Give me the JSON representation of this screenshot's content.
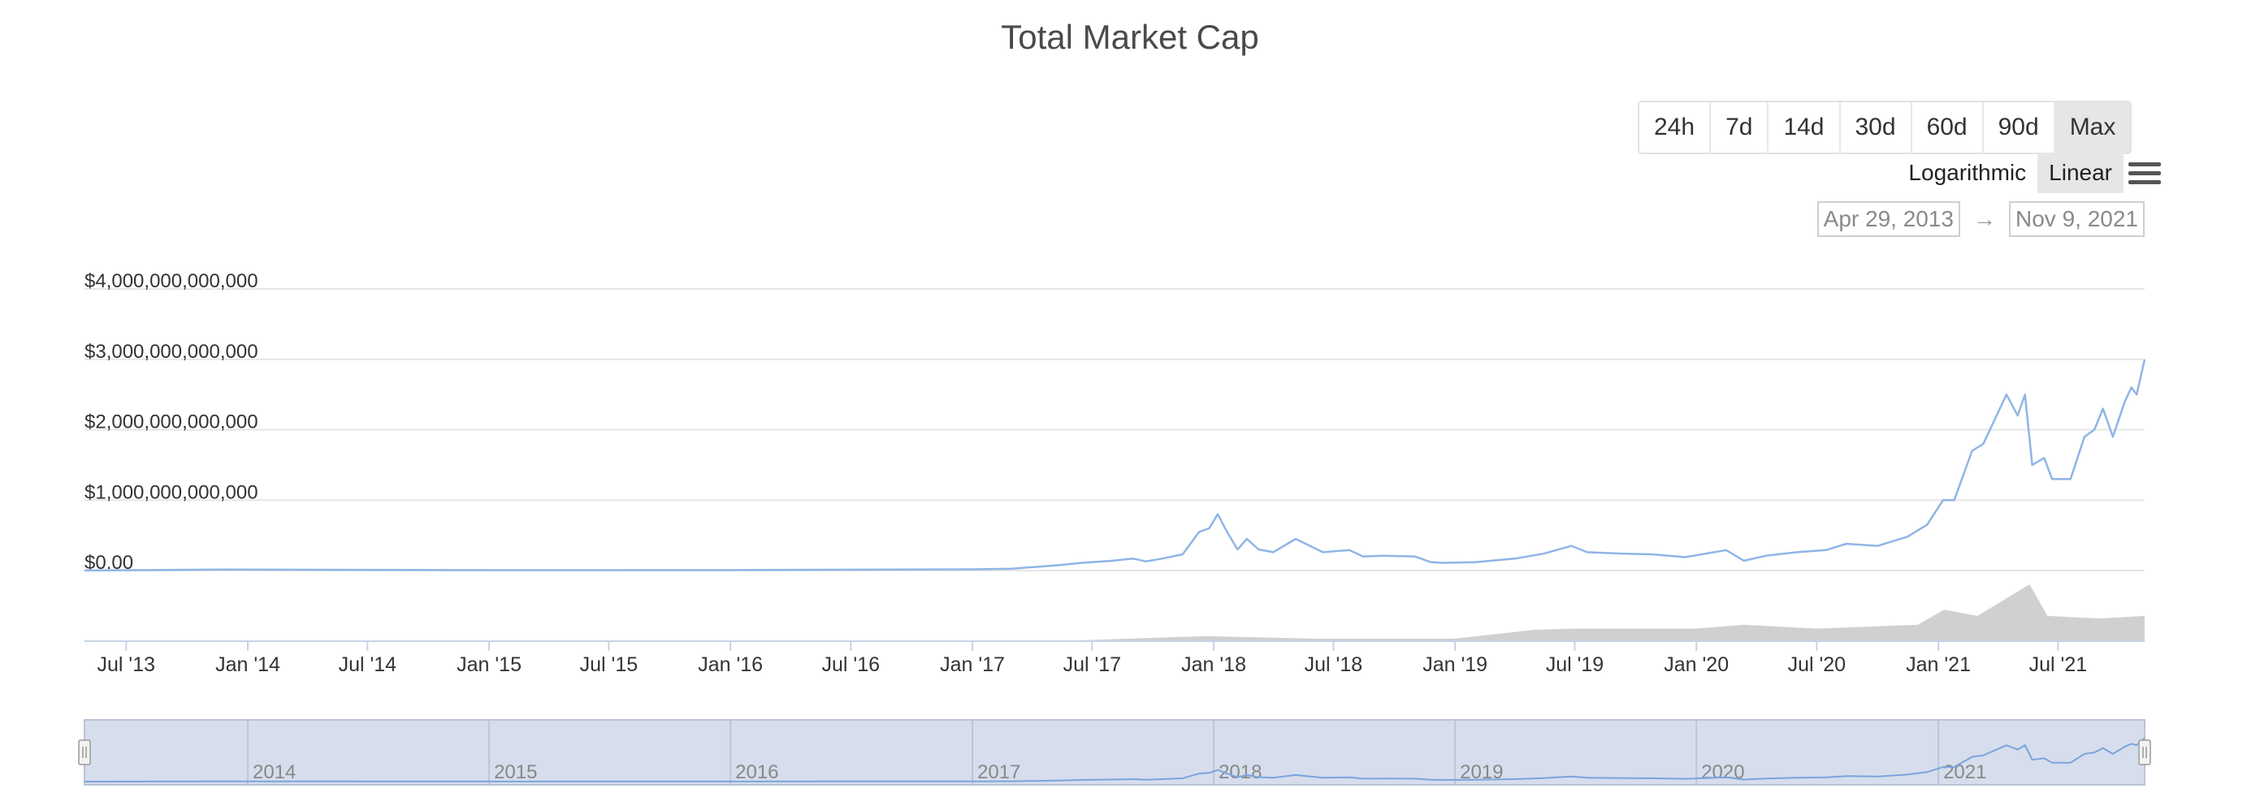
{
  "chart_data": {
    "type": "line",
    "title": "Total Market Cap",
    "y_scale": "linear",
    "grid": true,
    "ylim": [
      0,
      4000000000000
    ],
    "y_ticks": [
      "$0.00",
      "$1,000,000,000,000",
      "$2,000,000,000,000",
      "$3,000,000,000,000",
      "$4,000,000,000,000"
    ],
    "x_ticks": [
      "Jul '13",
      "Jan '14",
      "Jul '14",
      "Jan '15",
      "Jul '15",
      "Jan '16",
      "Jul '16",
      "Jan '17",
      "Jul '17",
      "Jan '18",
      "Jul '18",
      "Jan '19",
      "Jul '19",
      "Jan '20",
      "Jul '20",
      "Jan '21",
      "Jul '21"
    ],
    "series": [
      {
        "x": [
          "2013-04-29",
          "2013-12-01",
          "2014-06-01",
          "2015-01-01",
          "2016-01-01",
          "2016-06-01",
          "2017-01-01",
          "2017-03-01",
          "2017-05-15",
          "2017-06-15",
          "2017-08-01",
          "2017-09-01",
          "2017-09-20",
          "2017-10-15",
          "2017-11-15",
          "2017-12-10",
          "2017-12-25",
          "2018-01-07",
          "2018-01-20",
          "2018-02-06",
          "2018-02-20",
          "2018-03-10",
          "2018-04-01",
          "2018-05-05",
          "2018-06-15",
          "2018-07-25",
          "2018-08-15",
          "2018-09-15",
          "2018-11-01",
          "2018-11-25",
          "2018-12-15",
          "2019-02-01",
          "2019-04-01",
          "2019-05-15",
          "2019-06-26",
          "2019-07-20",
          "2019-09-15",
          "2019-10-26",
          "2019-12-15",
          "2020-02-15",
          "2020-03-13",
          "2020-04-15",
          "2020-06-01",
          "2020-07-15",
          "2020-08-15",
          "2020-10-01",
          "2020-11-15",
          "2020-12-15",
          "2021-01-08",
          "2021-01-25",
          "2021-02-21",
          "2021-03-10",
          "2021-04-14",
          "2021-05-01",
          "2021-05-12",
          "2021-05-23",
          "2021-06-10",
          "2021-06-22",
          "2021-07-20",
          "2021-08-10",
          "2021-08-25",
          "2021-09-07",
          "2021-09-22",
          "2021-10-10",
          "2021-10-20",
          "2021-10-28",
          "2021-11-09"
        ],
        "values": [
          1500000000,
          15000000000,
          10000000000,
          6000000000,
          7000000000,
          12000000000,
          17000000000,
          25000000000,
          80000000000,
          110000000000,
          140000000000,
          170000000000,
          130000000000,
          170000000000,
          230000000000,
          550000000000,
          600000000000,
          800000000000,
          570000000000,
          300000000000,
          450000000000,
          300000000000,
          260000000000,
          450000000000,
          260000000000,
          290000000000,
          200000000000,
          210000000000,
          200000000000,
          120000000000,
          110000000000,
          120000000000,
          170000000000,
          240000000000,
          350000000000,
          260000000000,
          240000000000,
          230000000000,
          190000000000,
          290000000000,
          140000000000,
          210000000000,
          260000000000,
          290000000000,
          380000000000,
          350000000000,
          480000000000,
          650000000000,
          1000000000000,
          1000000000000,
          1700000000000,
          1800000000000,
          2500000000000,
          2200000000000,
          2500000000000,
          1500000000000,
          1600000000000,
          1300000000000,
          1300000000000,
          1900000000000,
          2000000000000,
          2300000000000,
          1900000000000,
          2400000000000,
          2600000000000,
          2500000000000,
          3000000000000
        ]
      }
    ],
    "volume": {
      "x": [
        "2013-04-29",
        "2017-06-01",
        "2017-12-20",
        "2018-06-01",
        "2019-01-01",
        "2019-05-01",
        "2019-07-01",
        "2020-01-01",
        "2020-03-13",
        "2020-07-01",
        "2020-12-01",
        "2021-01-10",
        "2021-03-01",
        "2021-05-19",
        "2021-06-15",
        "2021-09-01",
        "2021-11-09"
      ],
      "values": [
        0,
        5000000000,
        40000000000,
        20000000000,
        20000000000,
        90000000000,
        100000000000,
        100000000000,
        130000000000,
        100000000000,
        130000000000,
        250000000000,
        200000000000,
        450000000000,
        200000000000,
        180000000000,
        200000000000
      ]
    },
    "navigator_labels": [
      "2014",
      "2015",
      "2016",
      "2017",
      "2018",
      "2019",
      "2020",
      "2021"
    ],
    "colors": {
      "line": "#8fb5e6",
      "volume": "#c4c4c4",
      "navigator_fill": "#d6ddec",
      "grid": "#e6e6e6"
    }
  },
  "controls": {
    "ranges": [
      "24h",
      "7d",
      "14d",
      "30d",
      "60d",
      "90d",
      "Max"
    ],
    "active_range": "Max",
    "scale_logarithmic": "Logarithmic",
    "scale_linear": "Linear",
    "active_scale": "Linear",
    "menu_icon": "hamburger-menu-icon",
    "date_from": "Apr 29, 2013",
    "date_arrow": "→",
    "date_to": "Nov 9, 2021"
  }
}
